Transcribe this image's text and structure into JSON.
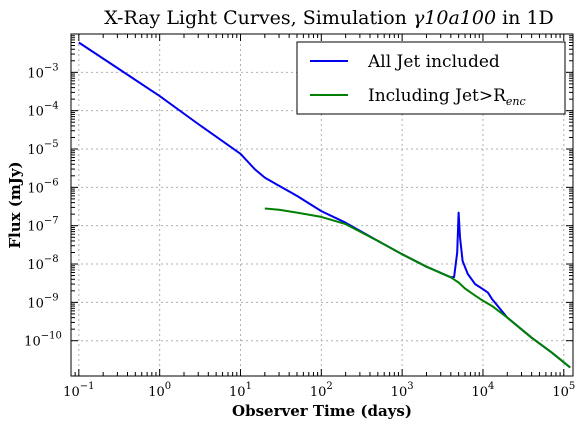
{
  "chart_data": {
    "type": "line",
    "title_main": "X-Ray Light Curves, Simulation ",
    "title_math": "γ10a100",
    "title_tail": " in 1D",
    "xlabel": "Observer Time (days)",
    "ylabel": "Flux (mJy)",
    "x_scale": "log",
    "y_scale": "log",
    "xlim": [
      0.08,
      130000
    ],
    "ylim": [
      1.2e-11,
      0.01
    ],
    "grid": true,
    "legend_placement": "top-right",
    "x_ticks": [
      {
        "value": 0.1,
        "base": "10",
        "exp": "−1"
      },
      {
        "value": 1,
        "base": "10",
        "exp": "0"
      },
      {
        "value": 10,
        "base": "10",
        "exp": "1"
      },
      {
        "value": 100,
        "base": "10",
        "exp": "2"
      },
      {
        "value": 1000,
        "base": "10",
        "exp": "3"
      },
      {
        "value": 10000,
        "base": "10",
        "exp": "4"
      },
      {
        "value": 100000,
        "base": "10",
        "exp": "5"
      }
    ],
    "y_ticks": [
      {
        "value": 1e-10,
        "base": "10",
        "exp": "−10"
      },
      {
        "value": 1e-09,
        "base": "10",
        "exp": "−9"
      },
      {
        "value": 1e-08,
        "base": "10",
        "exp": "−8"
      },
      {
        "value": 1e-07,
        "base": "10",
        "exp": "−7"
      },
      {
        "value": 1e-06,
        "base": "10",
        "exp": "−6"
      },
      {
        "value": 1e-05,
        "base": "10",
        "exp": "−5"
      },
      {
        "value": 0.0001,
        "base": "10",
        "exp": "−4"
      },
      {
        "value": 0.001,
        "base": "10",
        "exp": "−3"
      }
    ],
    "series": [
      {
        "name": "All Jet included",
        "color": "#0000ee",
        "points": [
          [
            0.1,
            0.006
          ],
          [
            0.3,
            0.0013
          ],
          [
            1,
            0.00024
          ],
          [
            3,
            4.5e-05
          ],
          [
            10,
            7.5e-06
          ],
          [
            15,
            3e-06
          ],
          [
            20,
            1.8e-06
          ],
          [
            30,
            1.1e-06
          ],
          [
            50,
            6e-07
          ],
          [
            100,
            2.4e-07
          ],
          [
            200,
            1.2e-07
          ],
          [
            500,
            4e-08
          ],
          [
            1000,
            1.8e-08
          ],
          [
            2000,
            8.5e-09
          ],
          [
            4000,
            4.5e-09
          ],
          [
            4400,
            4.6e-09
          ],
          [
            4800,
            2e-08
          ],
          [
            5000,
            2.2e-07
          ],
          [
            5200,
            5e-08
          ],
          [
            5600,
            1.2e-08
          ],
          [
            6500,
            5.5e-09
          ],
          [
            8000,
            3e-09
          ],
          [
            10000,
            2.2e-09
          ],
          [
            11500,
            1.8e-09
          ],
          [
            13000,
            1.2e-09
          ],
          [
            20000,
            4e-10
          ],
          [
            40000,
            1.2e-10
          ],
          [
            70000,
            5e-11
          ],
          [
            120000,
            2e-11
          ]
        ]
      },
      {
        "name": "Including Jet>R",
        "name_sub": "enc",
        "color": "#008000",
        "points": [
          [
            20,
            2.8e-07
          ],
          [
            30,
            2.6e-07
          ],
          [
            50,
            2.2e-07
          ],
          [
            100,
            1.7e-07
          ],
          [
            200,
            1.1e-07
          ],
          [
            500,
            4e-08
          ],
          [
            1000,
            1.8e-08
          ],
          [
            2000,
            8.5e-09
          ],
          [
            4000,
            4.5e-09
          ],
          [
            4500,
            3.8e-09
          ],
          [
            5000,
            3.3e-09
          ],
          [
            6000,
            2.3e-09
          ],
          [
            8000,
            1.5e-09
          ],
          [
            10000,
            1.1e-09
          ],
          [
            13000,
            8e-10
          ],
          [
            20000,
            4e-10
          ],
          [
            40000,
            1.2e-10
          ],
          [
            70000,
            5e-11
          ],
          [
            120000,
            2e-11
          ]
        ]
      }
    ]
  }
}
